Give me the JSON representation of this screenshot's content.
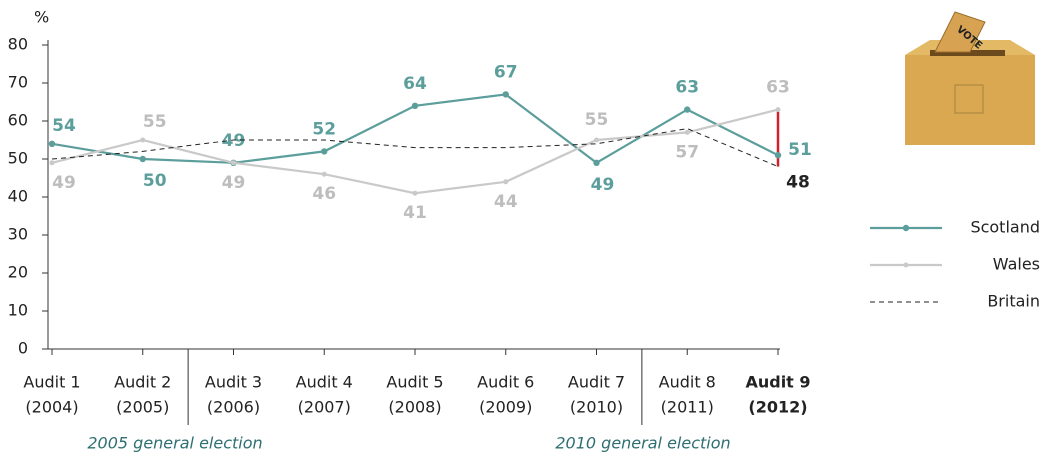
{
  "chart_data": {
    "type": "line",
    "y_axis_label": "%",
    "categories": [
      [
        "Audit 1",
        "(2004)"
      ],
      [
        "Audit 2",
        "(2005)"
      ],
      [
        "Audit 3",
        "(2006)"
      ],
      [
        "Audit 4",
        "(2007)"
      ],
      [
        "Audit 5",
        "(2008)"
      ],
      [
        "Audit 6",
        "(2009)"
      ],
      [
        "Audit 7",
        "(2010)"
      ],
      [
        "Audit 8",
        "(2011)"
      ],
      [
        "Audit 9",
        "(2012)"
      ]
    ],
    "series": [
      {
        "name": "Scotland",
        "color": "#5b9e9b",
        "values": [
          54,
          50,
          49,
          52,
          64,
          67,
          49,
          63,
          51
        ]
      },
      {
        "name": "Wales",
        "color": "#c9c9c9",
        "values": [
          49,
          55,
          49,
          46,
          41,
          44,
          55,
          57,
          63
        ]
      },
      {
        "name": "Britain",
        "color": "#222222",
        "dashed": true,
        "values": [
          50,
          52,
          55,
          55,
          53,
          53,
          54,
          58,
          48
        ],
        "value_labels": [
          null,
          null,
          null,
          null,
          null,
          null,
          null,
          null,
          "48"
        ]
      }
    ],
    "annotations": [
      "2005 general election",
      "2010 general election"
    ],
    "ylim": [
      0,
      80
    ],
    "yticks": [
      0,
      10,
      20,
      30,
      40,
      50,
      60,
      70,
      80
    ]
  }
}
